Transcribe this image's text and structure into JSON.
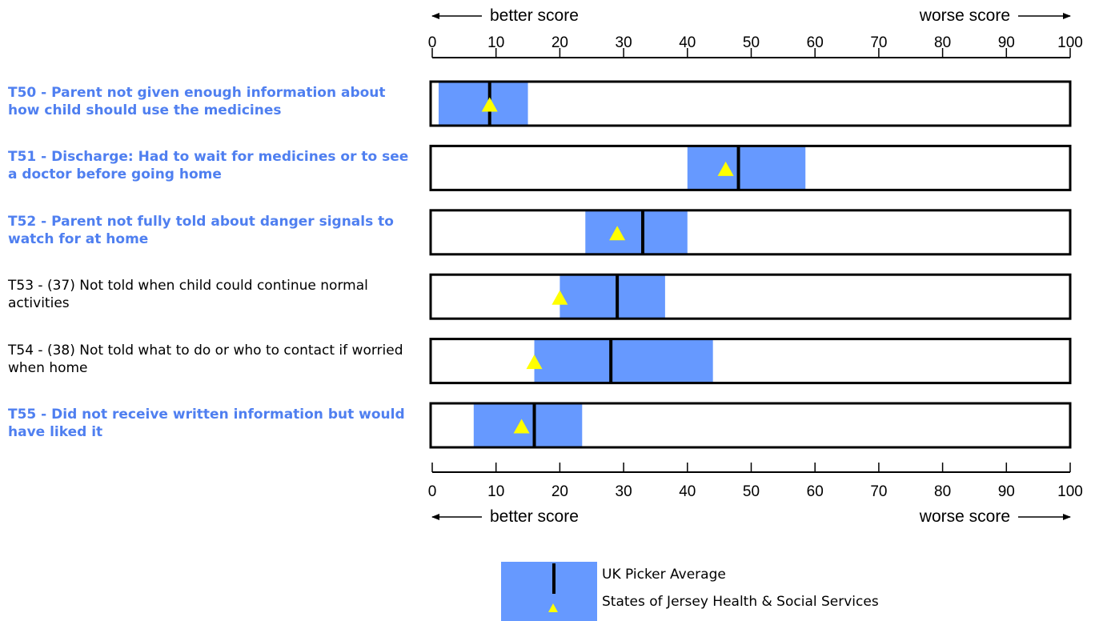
{
  "chart_data": {
    "type": "bar",
    "xlim": [
      0,
      100
    ],
    "ticks": [
      0,
      10,
      20,
      30,
      40,
      50,
      60,
      70,
      80,
      90,
      100
    ],
    "direction_labels": {
      "better": "better score",
      "worse": "worse score"
    },
    "rows": [
      {
        "label": "T50 - Parent not given enough information about how child should use the medicines",
        "highlight": true,
        "range": [
          1,
          15
        ],
        "uk_average": 9,
        "jersey": 9
      },
      {
        "label": "T51 - Discharge: Had to wait for medicines or to see a doctor before going home",
        "highlight": true,
        "range": [
          40,
          58.5
        ],
        "uk_average": 48,
        "jersey": 46
      },
      {
        "label": "T52 - Parent not fully told about danger signals to watch for at home",
        "highlight": true,
        "range": [
          24,
          40
        ],
        "uk_average": 33,
        "jersey": 29
      },
      {
        "label": "T53 - (37) Not told when child could continue normal activities",
        "highlight": false,
        "range": [
          20,
          36.5
        ],
        "uk_average": 29,
        "jersey": 20
      },
      {
        "label": "T54 - (38) Not told what to do or who to contact if worried when home",
        "highlight": false,
        "range": [
          16,
          44
        ],
        "uk_average": 28,
        "jersey": 16
      },
      {
        "label": "T55 - Did not receive written information but would have liked it",
        "highlight": true,
        "range": [
          6.5,
          23.5
        ],
        "uk_average": 16,
        "jersey": 14
      }
    ],
    "legend": {
      "uk_average": "UK Picker Average",
      "jersey": "States of Jersey Health & Social Services"
    },
    "colors": {
      "range": "#6699ff",
      "marker": "#ffff00",
      "median": "#000000",
      "highlight_label": "#4f7ff0"
    }
  }
}
